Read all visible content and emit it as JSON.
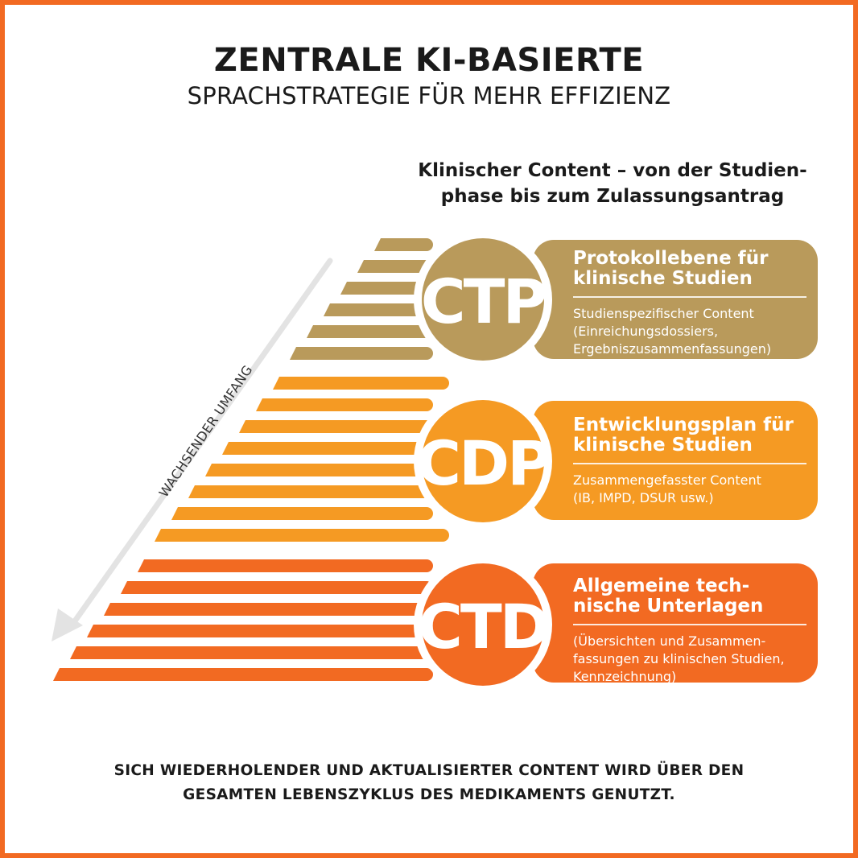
{
  "header": {
    "title": "ZENTRALE KI-BASIERTE",
    "subtitle": "SPRACHSTRATEGIE FÜR MEHR EFFIZIENZ"
  },
  "section_heading": {
    "line1": "Klinischer Content – von der Studien-",
    "line2": "phase bis zum Zulassungsantrag"
  },
  "axis_label": "WACHSENDER UMFANG",
  "levels": [
    {
      "code": "CTP",
      "color": "#b99a5b",
      "title_line1": "Protokollebene für",
      "title_line2": "klinische Studien",
      "desc_line1": "Studienspezifischer Content",
      "desc_line2": "(Einreichungsdossiers,",
      "desc_line3": "Ergebniszusammenfassungen)"
    },
    {
      "code": "CDP",
      "color": "#f59a23",
      "title_line1": "Entwicklungsplan für",
      "title_line2": "klinische Studien",
      "desc_line1": "Zusammengefasster Content",
      "desc_line2": "(IB, IMPD, DSUR usw.)"
    },
    {
      "code": "CTD",
      "color": "#f26a22",
      "title_line1": "Allgemeine tech-",
      "title_line2": "nische Unterlagen",
      "desc_line1": "(Übersichten und Zusammen-",
      "desc_line2": "fassungen zu klinischen Studien,",
      "desc_line3": "Kennzeichnung)"
    }
  ],
  "footer": {
    "line1": "SICH WIEDERHOLENDER UND AKTUALISIERTER CONTENT WIRD ÜBER DEN",
    "line2": "GESAMTEN LEBENSZYKLUS DES MEDIKAMENTS GENUTZT."
  },
  "colors": {
    "frame": "#f26a22",
    "arrow": "#e3e3e3",
    "text": "#1a1a1a"
  }
}
